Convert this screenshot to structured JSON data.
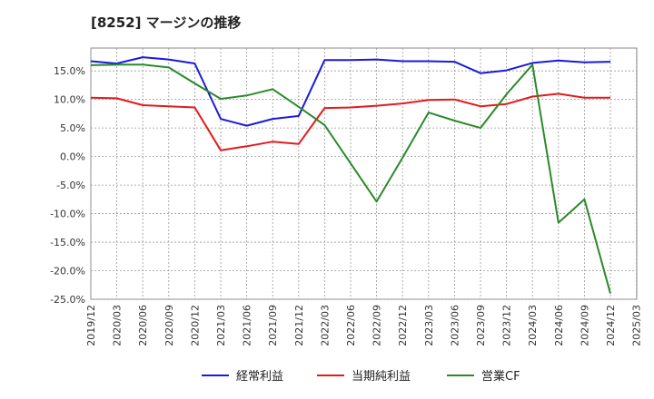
{
  "chart_data": {
    "type": "line",
    "title": "[8252]  マージンの推移",
    "ylim": [
      -25,
      19
    ],
    "y_ticks": [
      15,
      10,
      5,
      0,
      -5,
      -10,
      -15,
      -20,
      -25
    ],
    "y_tick_labels": [
      "15.0%",
      "10.0%",
      "5.0%",
      "0.0%",
      "-5.0%",
      "-10.0%",
      "-15.0%",
      "-20.0%",
      "-25.0%"
    ],
    "x_tick_labels": [
      "2019/12",
      "2020/03",
      "2020/06",
      "2020/09",
      "2020/12",
      "2021/03",
      "2021/06",
      "2021/09",
      "2021/12",
      "2022/03",
      "2022/06",
      "2022/09",
      "2022/12",
      "2023/03",
      "2023/06",
      "2023/09",
      "2023/12",
      "2024/03",
      "2024/06",
      "2024/09",
      "2024/12",
      "2025/03"
    ],
    "grid": true,
    "legend_position": "bottom",
    "series": [
      {
        "name": "経常利益",
        "color": "#1a1adc",
        "values": [
          16.7,
          16.3,
          17.4,
          17.0,
          16.3,
          6.6,
          5.4,
          6.6,
          7.1,
          16.9,
          16.9,
          17.0,
          16.7,
          16.7,
          16.6,
          14.6,
          15.1,
          16.4,
          16.8,
          16.5,
          16.6
        ]
      },
      {
        "name": "当期純利益",
        "color": "#e31a1a",
        "values": [
          10.3,
          10.2,
          9.0,
          8.8,
          8.6,
          1.1,
          1.8,
          2.6,
          2.2,
          8.5,
          8.6,
          8.9,
          9.3,
          9.9,
          10.0,
          8.8,
          9.2,
          10.5,
          11.0,
          10.3,
          10.3
        ]
      },
      {
        "name": "営業CF",
        "color": "#2a8a2a",
        "values": [
          16.0,
          16.1,
          16.1,
          15.6,
          12.8,
          10.1,
          10.7,
          11.8,
          8.7,
          5.5,
          -1.2,
          -7.9,
          -0.2,
          7.7,
          6.3,
          5.0,
          10.9,
          16.1,
          -11.6,
          -7.5,
          -24.0
        ]
      }
    ]
  }
}
